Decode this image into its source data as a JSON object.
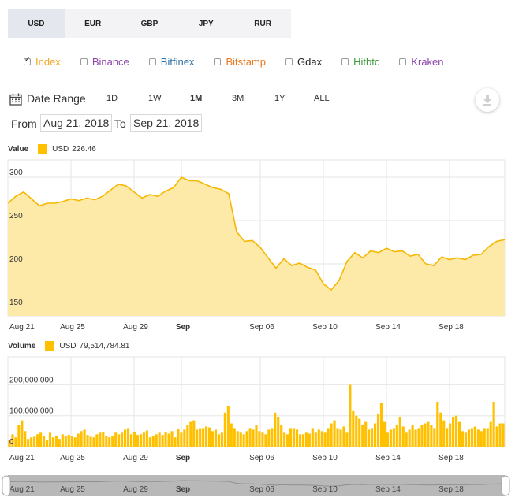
{
  "currency_tabs": [
    {
      "label": "USD",
      "active": true
    },
    {
      "label": "EUR",
      "active": false
    },
    {
      "label": "GBP",
      "active": false
    },
    {
      "label": "JPY",
      "active": false
    },
    {
      "label": "RUR",
      "active": false
    }
  ],
  "exchanges": [
    {
      "label": "Index",
      "checked": true,
      "color": "#f5a623"
    },
    {
      "label": "Binance",
      "checked": false,
      "color": "#8e44ad"
    },
    {
      "label": "Bitfinex",
      "checked": false,
      "color": "#2a6fa8"
    },
    {
      "label": "Bitstamp",
      "checked": false,
      "color": "#e8781e"
    },
    {
      "label": "Gdax",
      "checked": false,
      "color": "#222222"
    },
    {
      "label": "Hitbtc",
      "checked": false,
      "color": "#3c9a3c"
    },
    {
      "label": "Kraken",
      "checked": false,
      "color": "#8e44ad"
    }
  ],
  "date_range": {
    "label": "Date Range",
    "buttons": [
      "1D",
      "1W",
      "1M",
      "3M",
      "1Y",
      "ALL"
    ],
    "active": "1M",
    "from_label": "From",
    "from_value": "Aug 21, 2018",
    "to_label": "To",
    "to_value": "Sep 21, 2018"
  },
  "value_legend": {
    "title": "Value",
    "series": "USD",
    "value": "226.46"
  },
  "volume_legend": {
    "title": "Volume",
    "series": "USD",
    "value": "79,514,784.81"
  },
  "colors": {
    "accent": "#ffc000",
    "fill": "#fde9a8",
    "line": "#f5b800",
    "nav_band": "#b8b8b8"
  },
  "chart_data": [
    {
      "type": "area",
      "title": "Value",
      "x_ticks": [
        "Aug 21",
        "Aug 25",
        "Aug 29",
        "Sep",
        "Sep 06",
        "Sep 10",
        "Sep 14",
        "Sep 18"
      ],
      "y_ticks": [
        150,
        200,
        250,
        300
      ],
      "ylim": [
        140,
        320
      ],
      "x_start_day": 0,
      "x_end_day": 31.5,
      "series": [
        {
          "name": "USD",
          "x": [
            0,
            0.5,
            1,
            1.5,
            2,
            2.5,
            3,
            3.5,
            4,
            4.5,
            5,
            5.5,
            6,
            6.5,
            7,
            7.5,
            8,
            8.5,
            9,
            9.5,
            10,
            10.5,
            11,
            11.5,
            12,
            12.5,
            13,
            13.5,
            14,
            14.5,
            15,
            15.5,
            16,
            16.5,
            17,
            17.5,
            18,
            18.5,
            19,
            19.5,
            20,
            20.5,
            21,
            21.5,
            22,
            22.5,
            23,
            23.5,
            24,
            24.5,
            25,
            25.5,
            26,
            26.5,
            27,
            27.5,
            28,
            28.5,
            29,
            29.5,
            30,
            30.5,
            31,
            31.5
          ],
          "values": [
            270,
            278,
            283,
            275,
            267,
            270,
            270,
            272,
            275,
            273,
            276,
            274,
            278,
            285,
            292,
            290,
            283,
            276,
            280,
            278,
            284,
            288,
            300,
            296,
            296,
            292,
            288,
            286,
            281,
            237,
            226,
            227,
            219,
            207,
            195,
            206,
            198,
            201,
            196,
            193,
            177,
            170,
            181,
            203,
            213,
            207,
            215,
            213,
            218,
            214,
            215,
            209,
            211,
            200,
            198,
            208,
            205,
            207,
            205,
            210,
            211,
            220,
            226,
            228
          ]
        }
      ]
    },
    {
      "type": "bar",
      "title": "Volume",
      "x_ticks": [
        "Aug 21",
        "Aug 25",
        "Aug 29",
        "Sep",
        "Sep 06",
        "Sep 10",
        "Sep 14",
        "Sep 18"
      ],
      "y_ticks": [
        0,
        100000000,
        200000000
      ],
      "y_tick_labels": [
        "0",
        "100,000,000",
        "200,000,000"
      ],
      "ylim": [
        0,
        290000000
      ],
      "x_start_day": 0,
      "x_end_day": 31.5,
      "series": [
        {
          "name": "USD",
          "values": [
            20,
            40,
            30,
            70,
            85,
            50,
            25,
            30,
            32,
            40,
            45,
            35,
            20,
            45,
            30,
            35,
            25,
            40,
            33,
            38,
            35,
            30,
            42,
            50,
            55,
            38,
            32,
            30,
            40,
            45,
            48,
            35,
            30,
            35,
            45,
            40,
            45,
            55,
            60,
            40,
            48,
            38,
            40,
            45,
            52,
            30,
            35,
            40,
            45,
            38,
            48,
            42,
            50,
            30,
            58,
            45,
            55,
            70,
            80,
            85,
            55,
            60,
            60,
            65,
            62,
            50,
            55,
            40,
            45,
            110,
            130,
            75,
            60,
            50,
            45,
            40,
            50,
            60,
            55,
            70,
            50,
            45,
            40,
            55,
            60,
            110,
            95,
            70,
            45,
            40,
            60,
            60,
            55,
            40,
            40,
            45,
            42,
            60,
            45,
            55,
            50,
            45,
            60,
            75,
            85,
            60,
            55,
            65,
            45,
            200,
            115,
            100,
            90,
            70,
            80,
            55,
            60,
            75,
            105,
            140,
            80,
            45,
            55,
            60,
            70,
            95,
            65,
            45,
            55,
            70,
            55,
            60,
            70,
            75,
            80,
            70,
            60,
            145,
            110,
            85,
            60,
            75,
            95,
            100,
            80,
            50,
            45,
            55,
            60,
            65,
            55,
            50,
            60,
            60,
            80,
            145,
            65,
            75,
            75
          ]
        }
      ]
    }
  ]
}
